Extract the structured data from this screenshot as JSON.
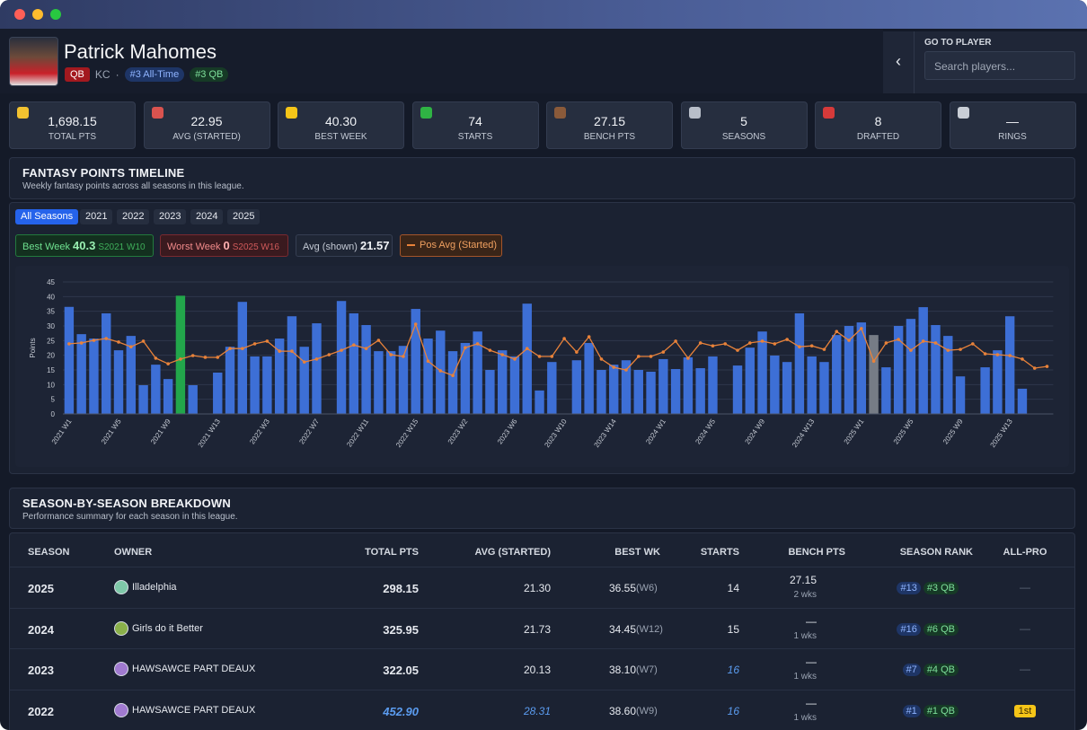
{
  "header": {
    "name": "Patrick Mahomes",
    "position": "QB",
    "team": "KC",
    "separator": "·",
    "badges": [
      "#3 All-Time",
      "#3 QB"
    ]
  },
  "search": {
    "label": "GO TO PLAYER",
    "placeholder": "Search players..."
  },
  "stats": [
    {
      "value": "1,698.15",
      "label": "TOTAL PTS"
    },
    {
      "value": "22.95",
      "label": "AVG (STARTED)"
    },
    {
      "value": "40.30",
      "label": "BEST WEEK"
    },
    {
      "value": "74",
      "label": "STARTS"
    },
    {
      "value": "27.15",
      "label": "BENCH PTS"
    },
    {
      "value": "5",
      "label": "SEASONS"
    },
    {
      "value": "8",
      "label": "DRAFTED"
    },
    {
      "value": "—",
      "label": "RINGS"
    }
  ],
  "timeline": {
    "title": "FANTASY POINTS TIMELINE",
    "subtitle": "Weekly fantasy points across all seasons in this league.",
    "filters": [
      "All Seasons",
      "2021",
      "2022",
      "2023",
      "2024",
      "2025"
    ],
    "best": {
      "label": "Best Week",
      "value": 40.3,
      "week": "S2021 W10"
    },
    "worst": {
      "label": "Worst Week",
      "value": 0,
      "week": "S2025 W16"
    },
    "average": {
      "label": "Avg (shown)",
      "value": 21.57
    }
  },
  "chart_data": {
    "type": "bar",
    "y_label": "Points",
    "ylim": [
      0,
      45
    ],
    "yticks": [
      0,
      5,
      10,
      15,
      20,
      25,
      30,
      35,
      40,
      45
    ],
    "grid": true,
    "categories": [
      "2021 W1",
      null,
      null,
      null,
      "2021 W5",
      null,
      null,
      null,
      "2021 W9",
      null,
      null,
      null,
      "2021 W13",
      null,
      null,
      null,
      "2022 W3",
      null,
      null,
      null,
      "2022 W7",
      null,
      null,
      null,
      "2022 W11",
      null,
      null,
      null,
      "2022 W15",
      null,
      null,
      null,
      "2023 W2",
      null,
      null,
      null,
      "2023 W6",
      null,
      null,
      null,
      "2023 W10",
      null,
      null,
      null,
      "2023 W14",
      null,
      null,
      null,
      "2024 W1",
      null,
      null,
      null,
      "2024 W5",
      null,
      null,
      null,
      "2024 W9",
      null,
      null,
      null,
      "2024 W13",
      null,
      null,
      null,
      "2025 W1",
      null,
      null,
      null,
      "2025 W5",
      null,
      null,
      null,
      "2025 W9",
      null,
      null,
      null,
      "2025 W13",
      null,
      null,
      null
    ],
    "values": [
      36.5,
      27.2,
      25.7,
      34.3,
      21.7,
      26.6,
      9.8,
      16.8,
      11.9,
      40.3,
      9.8,
      null,
      14.1,
      22.9,
      38.2,
      19.6,
      19.6,
      25.7,
      33.3,
      22.9,
      30.9,
      null,
      38.5,
      34.3,
      30.3,
      21.4,
      21.4,
      23.2,
      35.8,
      25.7,
      28.4,
      21.4,
      24.2,
      28.1,
      15.0,
      21.7,
      19.6,
      37.6,
      8.0,
      17.7,
      null,
      18.3,
      24.2,
      15.0,
      16.8,
      18.3,
      15.0,
      14.4,
      18.7,
      15.3,
      19.3,
      15.6,
      19.6,
      null,
      16.5,
      22.6,
      28.1,
      19.9,
      17.7,
      34.3,
      19.6,
      17.7,
      26.9,
      30.0,
      31.2,
      26.9,
      15.9,
      30.0,
      32.4,
      36.4,
      30.3,
      26.6,
      12.8,
      null,
      15.9,
      21.7,
      33.3,
      8.6,
      null,
      0
    ],
    "colors": [
      "#3d6fd6",
      "#3d6fd6",
      "#3d6fd6",
      "#3d6fd6",
      "#3d6fd6",
      "#3d6fd6",
      "#3d6fd6",
      "#3d6fd6",
      "#3d6fd6",
      "#22a64b",
      "#3d6fd6",
      "#3d6fd6",
      "#3d6fd6",
      "#3d6fd6",
      "#3d6fd6",
      "#3d6fd6",
      "#3d6fd6",
      "#3d6fd6",
      "#3d6fd6",
      "#3d6fd6",
      "#3d6fd6",
      "#3d6fd6",
      "#3d6fd6",
      "#3d6fd6",
      "#3d6fd6",
      "#3d6fd6",
      "#3d6fd6",
      "#3d6fd6",
      "#3d6fd6",
      "#3d6fd6",
      "#3d6fd6",
      "#3d6fd6",
      "#3d6fd6",
      "#3d6fd6",
      "#3d6fd6",
      "#3d6fd6",
      "#3d6fd6",
      "#3d6fd6",
      "#3d6fd6",
      "#3d6fd6",
      "#3d6fd6",
      "#3d6fd6",
      "#3d6fd6",
      "#3d6fd6",
      "#3d6fd6",
      "#3d6fd6",
      "#3d6fd6",
      "#3d6fd6",
      "#3d6fd6",
      "#3d6fd6",
      "#3d6fd6",
      "#3d6fd6",
      "#3d6fd6",
      "#3d6fd6",
      "#3d6fd6",
      "#3d6fd6",
      "#3d6fd6",
      "#3d6fd6",
      "#3d6fd6",
      "#3d6fd6",
      "#3d6fd6",
      "#3d6fd6",
      "#3d6fd6",
      "#3d6fd6",
      "#3d6fd6",
      "#767c86",
      "#3d6fd6",
      "#3d6fd6",
      "#3d6fd6",
      "#3d6fd6",
      "#3d6fd6",
      "#3d6fd6",
      "#3d6fd6",
      "#3d6fd6",
      "#3d6fd6",
      "#3d6fd6",
      "#3d6fd6",
      "#3d6fd6",
      "#3d6fd6",
      "#3d6fd6"
    ],
    "line": {
      "name": "Pos Avg (Started)",
      "color": "#e8823a",
      "values": [
        23.9,
        24.2,
        25.1,
        25.7,
        24.5,
        22.9,
        24.8,
        19.0,
        17.1,
        18.7,
        19.9,
        19.3,
        19.3,
        22.3,
        22.3,
        23.9,
        24.8,
        21.4,
        21.4,
        17.7,
        18.7,
        20.2,
        21.7,
        23.5,
        22.3,
        25.1,
        20.2,
        19.6,
        30.6,
        18.0,
        14.7,
        13.1,
        22.6,
        23.9,
        21.7,
        20.2,
        18.7,
        22.3,
        19.6,
        19.6,
        25.7,
        21.1,
        26.3,
        18.7,
        15.9,
        15.0,
        19.6,
        19.6,
        21.1,
        24.8,
        19.0,
        24.2,
        23.2,
        23.9,
        21.7,
        24.2,
        24.8,
        23.9,
        25.4,
        22.9,
        23.2,
        22.0,
        28.1,
        25.1,
        29.1,
        18.0,
        24.2,
        25.4,
        21.7,
        24.8,
        24.2,
        21.7,
        22.0,
        23.9,
        20.5,
        20.2,
        19.9,
        18.7,
        15.6,
        16.2
      ]
    }
  },
  "breakdown": {
    "title": "SEASON-BY-SEASON BREAKDOWN",
    "subtitle": "Performance summary for each season in this league.",
    "table": {
      "columns": [
        "SEASON",
        "OWNER",
        "TOTAL PTS",
        "AVG (STARTED)",
        "BEST WK",
        "STARTS",
        "BENCH PTS",
        "SEASON RANK",
        "ALL-PRO"
      ],
      "rows": [
        {
          "season": "2025",
          "owner": "Illadelphia",
          "total_pts": "298.15",
          "avg": "21.30",
          "best_wk": "36.55",
          "best_week": "(W6)",
          "starts": "14",
          "bench_pts": "27.15",
          "bench_wks": "2 wks",
          "rank": "#13",
          "pos_rank": "#3 QB",
          "all_pro": "—"
        },
        {
          "season": "2024",
          "owner": "Girls do it Better",
          "total_pts": "325.95",
          "avg": "21.73",
          "best_wk": "34.45",
          "best_week": "(W12)",
          "starts": "15",
          "bench_pts": "—",
          "bench_wks": "1 wks",
          "rank": "#16",
          "pos_rank": "#6 QB",
          "all_pro": "—"
        },
        {
          "season": "2023",
          "owner": "HAWSAWCE PART DEAUX",
          "total_pts": "322.05",
          "avg": "20.13",
          "best_wk": "38.10",
          "best_week": "(W7)",
          "starts": "16",
          "bench_pts": "—",
          "bench_wks": "1 wks",
          "rank": "#7",
          "pos_rank": "#4 QB",
          "all_pro": "—"
        },
        {
          "season": "2022",
          "owner": "HAWSAWCE PART DEAUX",
          "total_pts": "452.90",
          "avg": "28.31",
          "best_wk": "38.60",
          "best_week": "(W9)",
          "starts": "16",
          "bench_pts": "—",
          "bench_wks": "1 wks",
          "rank": "#1",
          "pos_rank": "#1 QB",
          "all_pro": "1st"
        }
      ]
    }
  }
}
